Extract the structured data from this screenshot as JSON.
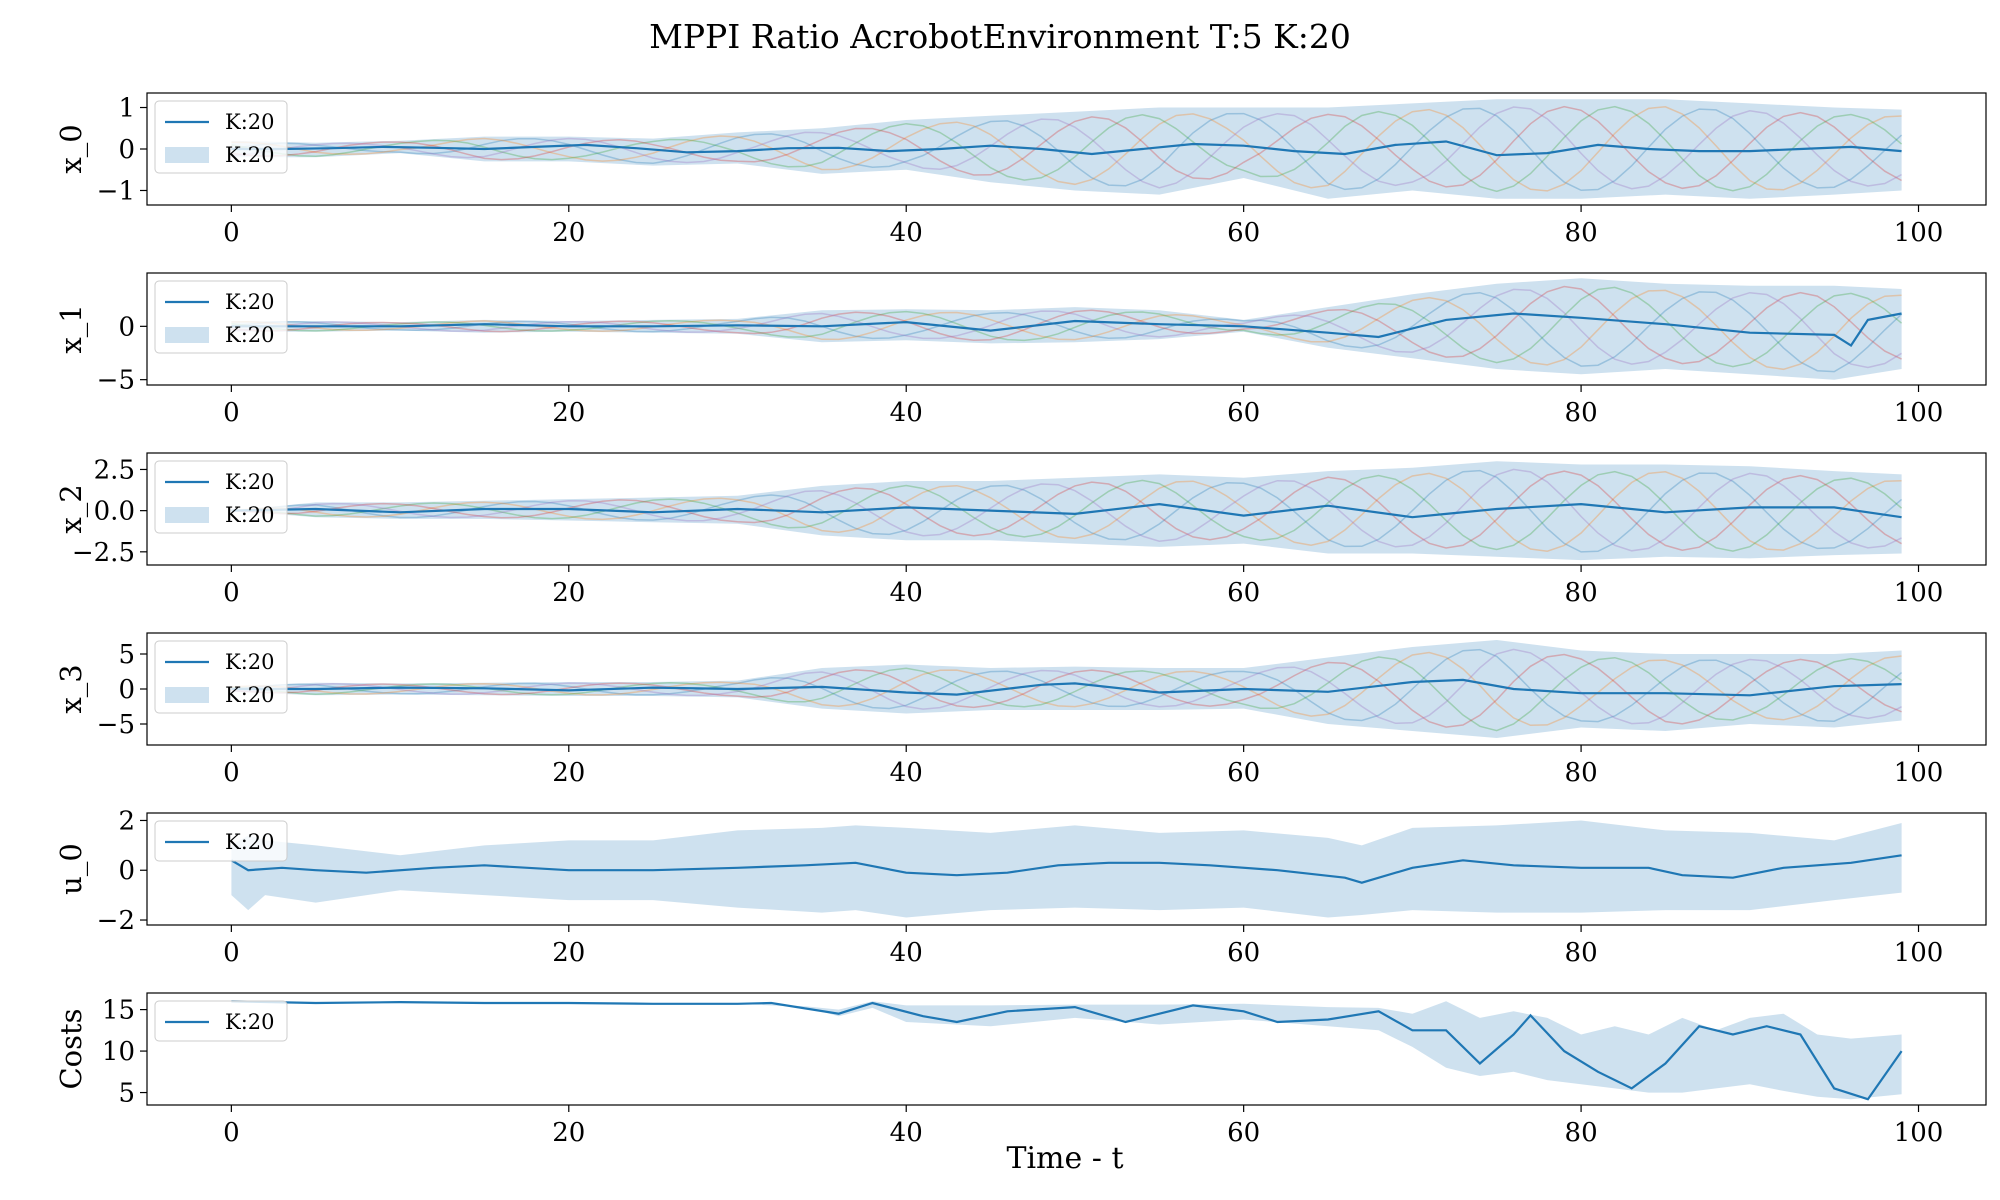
{
  "title": "MPPI Ratio AcrobotEnvironment T:5 K:20",
  "xlabel": "Time - t",
  "colors": {
    "mean": "#1f77b4",
    "band": "#9ec3e0",
    "traj": [
      "#1f77b4",
      "#ff7f0e",
      "#2ca02c",
      "#d62728",
      "#9467bd"
    ]
  },
  "chart_data": [
    {
      "type": "line",
      "ylabel": "x_0",
      "xlim": [
        -5,
        104
      ],
      "ylim": [
        -1.35,
        1.35
      ],
      "xticks": [
        0,
        20,
        40,
        60,
        80,
        100
      ],
      "yticks": [
        1,
        0,
        -1
      ],
      "ytick_labels": [
        "1",
        "0",
        "−1"
      ],
      "legend": [
        "K:20",
        "K:20"
      ],
      "legend_position": "upper left",
      "series": [
        {
          "name": "K:20",
          "x": [
            0,
            3,
            6,
            9,
            12,
            15,
            18,
            21,
            24,
            27,
            30,
            33,
            36,
            39,
            42,
            45,
            48,
            51,
            54,
            57,
            60,
            63,
            66,
            69,
            72,
            75,
            78,
            81,
            84,
            87,
            90,
            93,
            96,
            99
          ],
          "y": [
            0,
            0,
            0.02,
            0.05,
            0.03,
            0,
            0.05,
            0.1,
            0.02,
            -0.08,
            -0.05,
            0.02,
            0.03,
            -0.05,
            0,
            0.08,
            0,
            -0.12,
            0,
            0.12,
            0.08,
            -0.05,
            -0.12,
            0.1,
            0.18,
            -0.15,
            -0.1,
            0.1,
            0,
            -0.05,
            -0.05,
            0,
            0.05,
            -0.05
          ]
        }
      ],
      "band": {
        "name": "K:20",
        "x": [
          0,
          5,
          10,
          15,
          20,
          25,
          30,
          35,
          40,
          45,
          50,
          55,
          60,
          65,
          70,
          75,
          80,
          85,
          90,
          95,
          99
        ],
        "lower": [
          -0.2,
          -0.2,
          -0.1,
          -0.3,
          -0.3,
          -0.4,
          -0.35,
          -0.6,
          -0.5,
          -0.8,
          -1.0,
          -1.1,
          -0.7,
          -1.2,
          -1.0,
          -1.2,
          -1.2,
          -1.1,
          -1.2,
          -1.1,
          -1.0
        ],
        "upper": [
          0.2,
          0.15,
          0.2,
          0.3,
          0.3,
          0.25,
          0.4,
          0.5,
          0.7,
          0.8,
          0.9,
          1.0,
          1.0,
          1.0,
          1.1,
          1.2,
          1.2,
          1.2,
          1.1,
          1.0,
          0.95
        ]
      }
    },
    {
      "type": "line",
      "ylabel": "x_1",
      "xlim": [
        -5,
        104
      ],
      "ylim": [
        -5.5,
        5
      ],
      "xticks": [
        0,
        20,
        40,
        60,
        80,
        100
      ],
      "yticks": [
        0,
        -5
      ],
      "ytick_labels": [
        "0",
        "−5"
      ],
      "legend": [
        "K:20",
        "K:20"
      ],
      "legend_position": "upper left",
      "series": [
        {
          "name": "K:20",
          "x": [
            0,
            5,
            10,
            15,
            20,
            25,
            30,
            35,
            40,
            45,
            50,
            55,
            60,
            65,
            68,
            72,
            76,
            80,
            85,
            90,
            95,
            96,
            97,
            99
          ],
          "y": [
            0,
            0,
            0,
            0.2,
            0,
            0,
            0.1,
            0,
            0.4,
            -0.4,
            0.5,
            0.2,
            0,
            -0.6,
            -1.0,
            0.6,
            1.2,
            0.8,
            0.2,
            -0.6,
            -0.8,
            -1.8,
            0.6,
            1.2
          ]
        }
      ],
      "band": {
        "name": "K:20",
        "x": [
          0,
          5,
          10,
          15,
          20,
          25,
          30,
          35,
          40,
          45,
          50,
          55,
          60,
          65,
          70,
          75,
          80,
          85,
          90,
          95,
          99
        ],
        "lower": [
          -0.5,
          -0.5,
          -0.4,
          -0.6,
          -0.5,
          -0.6,
          -0.7,
          -1.5,
          -1.3,
          -1.6,
          -1.5,
          -1.2,
          -0.5,
          -2.0,
          -3.0,
          -4.0,
          -4.5,
          -4.0,
          -4.5,
          -5.0,
          -4.0
        ],
        "upper": [
          0.5,
          0.5,
          0.4,
          0.6,
          0.5,
          0.6,
          0.7,
          1.5,
          1.6,
          1.5,
          1.8,
          1.5,
          0.6,
          1.8,
          3.0,
          4.0,
          4.5,
          4.0,
          3.8,
          3.8,
          3.5
        ]
      }
    },
    {
      "type": "line",
      "ylabel": "x_2",
      "xlim": [
        -5,
        104
      ],
      "ylim": [
        -3.3,
        3.5
      ],
      "xticks": [
        0,
        20,
        40,
        60,
        80,
        100
      ],
      "yticks": [
        2.5,
        0,
        -2.5
      ],
      "ytick_labels": [
        "2.5",
        "0.0",
        "−2.5"
      ],
      "legend": [
        "K:20",
        "K:20"
      ],
      "legend_position": "upper left",
      "series": [
        {
          "name": "K:20",
          "x": [
            0,
            5,
            10,
            15,
            20,
            25,
            30,
            35,
            40,
            45,
            50,
            55,
            60,
            65,
            70,
            72,
            75,
            80,
            85,
            90,
            95,
            99
          ],
          "y": [
            0,
            0.1,
            -0.1,
            0.1,
            0.1,
            -0.1,
            0.1,
            -0.1,
            0.2,
            0,
            -0.2,
            0.4,
            -0.3,
            0.3,
            -0.4,
            -0.2,
            0.1,
            0.4,
            -0.1,
            0.2,
            0.2,
            -0.4
          ]
        }
      ],
      "band": {
        "name": "K:20",
        "x": [
          0,
          5,
          10,
          15,
          20,
          25,
          30,
          35,
          40,
          45,
          50,
          55,
          60,
          65,
          70,
          75,
          80,
          85,
          90,
          95,
          99
        ],
        "lower": [
          0,
          -0.4,
          -0.5,
          -0.5,
          -0.6,
          -0.7,
          -0.8,
          -1.5,
          -1.8,
          -1.8,
          -2.0,
          -2.2,
          -2.0,
          -2.6,
          -2.6,
          -2.8,
          -3.0,
          -2.8,
          -2.9,
          -2.7,
          -2.6
        ],
        "upper": [
          0,
          0.5,
          0.5,
          0.6,
          0.7,
          0.8,
          0.9,
          1.5,
          1.8,
          1.8,
          2.0,
          2.2,
          2.0,
          2.4,
          2.6,
          3.0,
          2.8,
          2.8,
          2.7,
          2.4,
          2.2
        ]
      }
    },
    {
      "type": "line",
      "ylabel": "x_3",
      "xlim": [
        -5,
        104
      ],
      "ylim": [
        -8,
        8
      ],
      "xticks": [
        0,
        20,
        40,
        60,
        80,
        100
      ],
      "yticks": [
        5,
        0,
        -5
      ],
      "ytick_labels": [
        "5",
        "0",
        "−5"
      ],
      "legend": [
        "K:20",
        "K:20"
      ],
      "legend_position": "upper left",
      "series": [
        {
          "name": "K:20",
          "x": [
            0,
            5,
            10,
            15,
            20,
            25,
            30,
            35,
            40,
            43,
            48,
            50,
            55,
            60,
            65,
            70,
            73,
            76,
            80,
            85,
            90,
            95,
            99
          ],
          "y": [
            0,
            0,
            0.2,
            0.1,
            -0.2,
            0.2,
            0,
            0.3,
            -0.5,
            -0.8,
            0.6,
            0.8,
            -0.5,
            0,
            -0.4,
            1.0,
            1.3,
            0,
            -0.6,
            -0.6,
            -0.9,
            0.4,
            0.7
          ]
        }
      ],
      "band": {
        "name": "K:20",
        "x": [
          0,
          5,
          10,
          15,
          20,
          25,
          30,
          35,
          40,
          45,
          50,
          55,
          60,
          65,
          70,
          75,
          80,
          85,
          90,
          95,
          99
        ],
        "lower": [
          -0.4,
          -0.9,
          -0.8,
          -0.9,
          -1.0,
          -1.0,
          -1.2,
          -2.8,
          -3.5,
          -3.0,
          -3.0,
          -3.0,
          -2.8,
          -5.0,
          -6.0,
          -7.0,
          -5.5,
          -6.0,
          -5.0,
          -5.5,
          -4.5
        ],
        "upper": [
          0.4,
          0.9,
          0.8,
          0.9,
          1.0,
          1.0,
          1.2,
          3.0,
          3.5,
          3.0,
          3.2,
          3.0,
          3.0,
          4.5,
          6.0,
          7.0,
          5.5,
          5.0,
          5.0,
          5.0,
          5.5
        ]
      }
    },
    {
      "type": "line",
      "ylabel": "u_0",
      "xlim": [
        -5,
        104
      ],
      "ylim": [
        -2.2,
        2.3
      ],
      "xticks": [
        0,
        20,
        40,
        60,
        80,
        100
      ],
      "yticks": [
        2,
        0,
        -2
      ],
      "ytick_labels": [
        "2",
        "0",
        "−2"
      ],
      "legend": [
        "K:20"
      ],
      "legend_position": "upper left",
      "series": [
        {
          "name": "K:20",
          "x": [
            0,
            1,
            3,
            5,
            8,
            12,
            15,
            20,
            25,
            30,
            34,
            37,
            40,
            43,
            46,
            49,
            52,
            55,
            58,
            62,
            66,
            67,
            70,
            73,
            76,
            80,
            84,
            86,
            89,
            92,
            96,
            99
          ],
          "y": [
            0.4,
            0,
            0.1,
            0,
            -0.1,
            0.1,
            0.2,
            0,
            0,
            0.1,
            0.2,
            0.3,
            -0.1,
            -0.2,
            -0.1,
            0.2,
            0.3,
            0.3,
            0.2,
            0,
            -0.3,
            -0.5,
            0.1,
            0.4,
            0.2,
            0.1,
            0.1,
            -0.2,
            -0.3,
            0.1,
            0.3,
            0.6
          ]
        }
      ],
      "band": {
        "name": "K:20",
        "x": [
          0,
          1,
          2,
          5,
          10,
          15,
          20,
          25,
          30,
          35,
          37,
          40,
          45,
          50,
          55,
          60,
          65,
          67,
          70,
          75,
          80,
          85,
          90,
          95,
          99
        ],
        "lower": [
          -1,
          -1.6,
          -1.0,
          -1.3,
          -0.8,
          -1.0,
          -1.2,
          -1.2,
          -1.5,
          -1.7,
          -1.6,
          -1.9,
          -1.6,
          -1.5,
          -1.6,
          -1.5,
          -1.9,
          -1.8,
          -1.6,
          -1.7,
          -1.7,
          -1.6,
          -1.6,
          -1.2,
          -0.9
        ],
        "upper": [
          1.0,
          1.4,
          1.2,
          1.0,
          0.6,
          1.0,
          1.2,
          1.2,
          1.6,
          1.7,
          1.8,
          1.7,
          1.5,
          1.8,
          1.5,
          1.6,
          1.3,
          1.0,
          1.7,
          1.8,
          2.0,
          1.6,
          1.5,
          1.2,
          1.9
        ]
      }
    },
    {
      "type": "line",
      "ylabel": "Costs",
      "xlim": [
        -5,
        104
      ],
      "ylim": [
        3.5,
        17
      ],
      "xticks": [
        0,
        20,
        40,
        60,
        80,
        100
      ],
      "yticks": [
        15,
        10,
        5
      ],
      "ytick_labels": [
        "15",
        "10",
        "5"
      ],
      "legend": [
        "K:20"
      ],
      "legend_position": "upper left",
      "series": [
        {
          "name": "K:20",
          "x": [
            0,
            5,
            10,
            15,
            20,
            25,
            30,
            32,
            36,
            38,
            41,
            43,
            46,
            50,
            53,
            57,
            60,
            62,
            65,
            68,
            70,
            72,
            74,
            76,
            77,
            79,
            81,
            83,
            85,
            87,
            89,
            91,
            93,
            95,
            97,
            99
          ],
          "y": [
            16,
            15.8,
            15.9,
            15.8,
            15.8,
            15.7,
            15.7,
            15.8,
            14.5,
            15.8,
            14.2,
            13.5,
            14.8,
            15.3,
            13.5,
            15.5,
            14.8,
            13.5,
            13.8,
            14.8,
            12.5,
            12.5,
            8.5,
            12,
            14.3,
            10,
            7.5,
            5.5,
            8.5,
            13,
            12,
            13,
            12,
            5.5,
            4.2,
            10
          ]
        }
      ],
      "band": {
        "name": "K:20",
        "x": [
          0,
          10,
          20,
          30,
          34,
          36,
          38,
          40,
          45,
          50,
          55,
          60,
          65,
          68,
          70,
          72,
          74,
          76,
          78,
          80,
          82,
          84,
          86,
          88,
          90,
          92,
          94,
          96,
          99
        ],
        "lower": [
          16,
          15.9,
          15.8,
          15.7,
          15.3,
          14.2,
          15.2,
          13.5,
          13.0,
          14.0,
          13.2,
          13.8,
          13.0,
          12.5,
          10.5,
          8.0,
          7.0,
          7.5,
          6.5,
          6.0,
          5.5,
          5.0,
          5.0,
          5.5,
          6.0,
          5.2,
          4.5,
          4.2,
          4.8
        ],
        "upper": [
          16,
          15.9,
          15.8,
          15.8,
          15.4,
          15.0,
          16.0,
          15.5,
          15.5,
          15.6,
          15.6,
          15.7,
          15.3,
          15.2,
          14.5,
          16.0,
          14.0,
          14.8,
          14.0,
          12.0,
          13.0,
          12.0,
          14.0,
          12.5,
          14.0,
          14.5,
          12.0,
          11.5,
          12.0
        ]
      }
    }
  ]
}
